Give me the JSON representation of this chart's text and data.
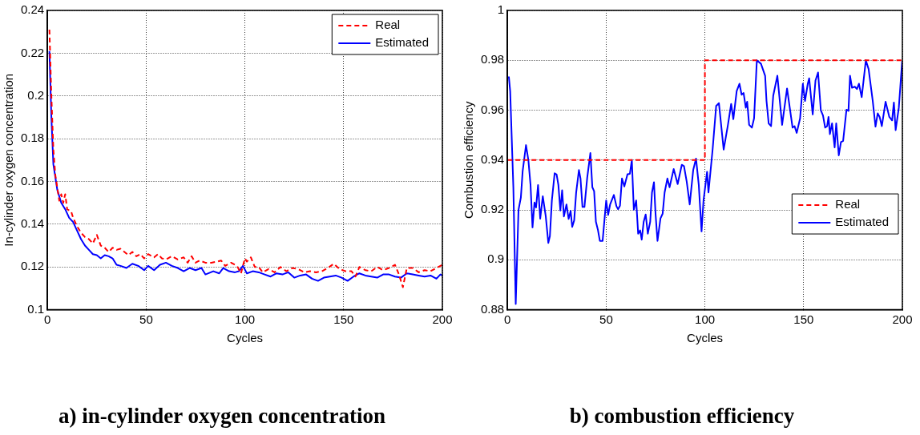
{
  "chart_data": [
    {
      "type": "line",
      "title": "a) in-cylinder oxygen concentration",
      "xlabel": "Cycles",
      "ylabel": "In-cylinder oxygen concentration",
      "xlim": [
        0,
        200
      ],
      "xticks": [
        0,
        50,
        100,
        150,
        200
      ],
      "ylim": [
        0.1,
        0.24
      ],
      "yticks": [
        {
          "value": 0.1,
          "label": "0.1"
        },
        0.12,
        0.14,
        0.16,
        0.18,
        {
          "value": 0.2,
          "label": "0.2"
        },
        0.22,
        0.24
      ],
      "grid": true,
      "legend": "top right",
      "marker": "none",
      "series": [
        {
          "name": "Real",
          "color": "#ff0000",
          "line_style": "dashed",
          "x": [
            1,
            2,
            3,
            4,
            6,
            7,
            8,
            9,
            10,
            12,
            13,
            15,
            17,
            19,
            21,
            23,
            25,
            27,
            29,
            31,
            33,
            35,
            37,
            39,
            41,
            43,
            45,
            47,
            49,
            51,
            54,
            56,
            58,
            60,
            63,
            66,
            69,
            71,
            73,
            75,
            77,
            80,
            83,
            86,
            88,
            90,
            93,
            96,
            98,
            100,
            101,
            103,
            105,
            107,
            109,
            112,
            115,
            118,
            121,
            124,
            127,
            130,
            133,
            136,
            139,
            142,
            145,
            148,
            151,
            154,
            156,
            158,
            161,
            164,
            167,
            170,
            173,
            176,
            178,
            180,
            182,
            185,
            188,
            191,
            194,
            197,
            200
          ],
          "values": [
            0.231,
            0.2,
            0.175,
            0.163,
            0.151,
            0.154,
            0.15,
            0.154,
            0.147,
            0.146,
            0.143,
            0.139,
            0.136,
            0.134,
            0.133,
            0.131,
            0.135,
            0.13,
            0.129,
            0.127,
            0.129,
            0.128,
            0.1285,
            0.127,
            0.1255,
            0.127,
            0.125,
            0.126,
            0.124,
            0.126,
            0.1245,
            0.126,
            0.124,
            0.1235,
            0.125,
            0.1235,
            0.1245,
            0.122,
            0.125,
            0.122,
            0.123,
            0.122,
            0.122,
            0.1225,
            0.123,
            0.1205,
            0.122,
            0.1205,
            0.117,
            0.124,
            0.1225,
            0.1245,
            0.12,
            0.12,
            0.1175,
            0.119,
            0.1175,
            0.12,
            0.118,
            0.1195,
            0.119,
            0.1175,
            0.118,
            0.1175,
            0.118,
            0.1195,
            0.1215,
            0.119,
            0.118,
            0.118,
            0.1155,
            0.12,
            0.1185,
            0.118,
            0.12,
            0.1185,
            0.1195,
            0.121,
            0.1165,
            0.1105,
            0.1195,
            0.1195,
            0.1175,
            0.1185,
            0.118,
            0.1195,
            0.121
          ]
        },
        {
          "name": "Estimated",
          "color": "#0000ff",
          "line_style": "solid",
          "x": [
            1,
            2,
            3,
            5,
            7,
            9,
            11,
            13,
            15,
            17,
            19,
            21,
            23,
            25,
            27,
            29,
            31,
            33,
            35,
            37,
            40,
            43,
            46,
            49,
            51,
            54,
            57,
            60,
            63,
            66,
            69,
            72,
            75,
            78,
            80,
            84,
            87,
            89,
            92,
            95,
            97,
            99,
            101,
            104,
            107,
            110,
            113,
            116,
            119,
            122,
            125,
            128,
            131,
            134,
            137,
            140,
            143,
            146,
            149,
            152,
            155,
            158,
            161,
            164,
            167,
            170,
            173,
            176,
            179,
            182,
            185,
            188,
            191,
            194,
            197,
            199,
            200
          ],
          "values": [
            0.221,
            0.19,
            0.168,
            0.156,
            0.15,
            0.147,
            0.143,
            0.141,
            0.137,
            0.133,
            0.13,
            0.128,
            0.126,
            0.1255,
            0.124,
            0.1255,
            0.125,
            0.124,
            0.121,
            0.1205,
            0.1195,
            0.1215,
            0.1205,
            0.1185,
            0.1205,
            0.1185,
            0.121,
            0.122,
            0.1205,
            0.1195,
            0.118,
            0.1195,
            0.1185,
            0.1195,
            0.1165,
            0.118,
            0.117,
            0.1195,
            0.118,
            0.1175,
            0.118,
            0.1205,
            0.117,
            0.118,
            0.1175,
            0.1165,
            0.1155,
            0.117,
            0.1165,
            0.1175,
            0.115,
            0.116,
            0.1165,
            0.1145,
            0.1135,
            0.115,
            0.1155,
            0.116,
            0.115,
            0.1135,
            0.1155,
            0.117,
            0.116,
            0.1155,
            0.115,
            0.1165,
            0.1165,
            0.1155,
            0.115,
            0.117,
            0.1165,
            0.116,
            0.1155,
            0.116,
            0.1145,
            0.1165,
            0.116
          ]
        }
      ]
    },
    {
      "type": "line",
      "title": "b) combustion efficiency",
      "xlabel": "Cycles",
      "ylabel": "Combustion efficiency",
      "xlim": [
        0,
        200
      ],
      "xticks": [
        0,
        50,
        100,
        150,
        200
      ],
      "ylim": [
        0.88,
        1
      ],
      "yticks": [
        0.88,
        {
          "value": 0.9,
          "label": "0.9"
        },
        0.92,
        0.94,
        0.96,
        0.98,
        {
          "value": 1,
          "label": "1"
        }
      ],
      "grid": true,
      "legend": "right",
      "marker": "none",
      "series": [
        {
          "name": "Real",
          "color": "#ff0000",
          "line_style": "dashed",
          "x": [
            0,
            100,
            100,
            200
          ],
          "values": [
            0.94,
            0.94,
            0.98,
            0.98
          ]
        },
        {
          "name": "Estimated",
          "color": "#0000ff",
          "line_style": "solid",
          "x": [
            0.7,
            1.4,
            3,
            4.2,
            5.6,
            6.8,
            7.7,
            9.4,
            10.6,
            11.7,
            12.7,
            13.7,
            14.5,
            15.5,
            16.6,
            17.9,
            19.4,
            20.7,
            21.5,
            22.5,
            23.9,
            24.9,
            25.8,
            26.8,
            27.7,
            28.6,
            29.9,
            31,
            32,
            32.8,
            33.8,
            34.8,
            36.2,
            37,
            38,
            39,
            40.4,
            42,
            43,
            43.9,
            44.8,
            45.8,
            46.8,
            48.2,
            50,
            51,
            52,
            53.9,
            55.2,
            56,
            57,
            58,
            59.2,
            60.8,
            62,
            63,
            64,
            65.2,
            66.2,
            67.2,
            68,
            69,
            70,
            71.1,
            72.3,
            73.2,
            74.2,
            75,
            76,
            77.5,
            78.6,
            79.6,
            81,
            82.1,
            84.2,
            86.2,
            88.3,
            89.4,
            90.8,
            92.3,
            94.1,
            95.5,
            96.9,
            98.3,
            99.3,
            101.1,
            101.8,
            103.9,
            105.7,
            107.1,
            109.5,
            111.6,
            113.3,
            114.4,
            116.1,
            117.5,
            118.6,
            119.6,
            120.7,
            121.4,
            122.4,
            123.8,
            124.9,
            126.3,
            128.4,
            130.5,
            131.2,
            132.3,
            133.5,
            134.6,
            136.7,
            139.1,
            141.6,
            144.4,
            145.4,
            146.5,
            148.2,
            149.6,
            150.7,
            152.1,
            152.8,
            154.6,
            156,
            157.3,
            158.7,
            159.8,
            160.9,
            161.9,
            162.6,
            163.3,
            164.4,
            165.7,
            166.5,
            167.8,
            168.9,
            170,
            171.7,
            172.7,
            173.5,
            174.5,
            175.9,
            177,
            178,
            179.4,
            181.5,
            182.9,
            185,
            186.4,
            187.5,
            188.5,
            189.6,
            191.5,
            193.4,
            194.8,
            195.7,
            196.6,
            198.2,
            199.9
          ],
          "values": [
            0.9735,
            0.9675,
            0.929,
            0.8823,
            0.92,
            0.925,
            0.9355,
            0.946,
            0.94,
            0.93,
            0.913,
            0.923,
            0.921,
            0.93,
            0.9165,
            0.9255,
            0.9175,
            0.9068,
            0.9095,
            0.9238,
            0.9347,
            0.9342,
            0.93,
            0.9198,
            0.9279,
            0.9174,
            0.9222,
            0.9164,
            0.9196,
            0.9132,
            0.9158,
            0.927,
            0.936,
            0.9326,
            0.9212,
            0.9212,
            0.9329,
            0.9428,
            0.9291,
            0.9275,
            0.9153,
            0.9121,
            0.9076,
            0.9076,
            0.9238,
            0.918,
            0.9222,
            0.926,
            0.9215,
            0.9203,
            0.9217,
            0.9326,
            0.9294,
            0.9343,
            0.9345,
            0.94,
            0.9201,
            0.9238,
            0.9105,
            0.9118,
            0.9081,
            0.9153,
            0.9182,
            0.9105,
            0.9153,
            0.927,
            0.9311,
            0.9185,
            0.9076,
            0.9166,
            0.9185,
            0.927,
            0.9326,
            0.9291,
            0.9364,
            0.9304,
            0.9381,
            0.9376,
            0.9313,
            0.9222,
            0.9361,
            0.9406,
            0.93,
            0.9114,
            0.9238,
            0.9353,
            0.927,
            0.9442,
            0.9617,
            0.9628,
            0.9442,
            0.9538,
            0.9625,
            0.9564,
            0.9677,
            0.9706,
            0.9662,
            0.9669,
            0.961,
            0.9634,
            0.9541,
            0.953,
            0.9567,
            0.98,
            0.9786,
            0.9738,
            0.9637,
            0.9547,
            0.9536,
            0.9658,
            0.9738,
            0.9541,
            0.9687,
            0.953,
            0.9536,
            0.9509,
            0.9567,
            0.9706,
            0.9637,
            0.9706,
            0.9728,
            0.9583,
            0.9719,
            0.9751,
            0.96,
            0.9579,
            0.953,
            0.9536,
            0.9573,
            0.9504,
            0.9547,
            0.9451,
            0.9547,
            0.9419,
            0.9472,
            0.9477,
            0.9602,
            0.9597,
            0.9738,
            0.969,
            0.9694,
            0.9685,
            0.9706,
            0.9652,
            0.98,
            0.9765,
            0.9637,
            0.9534,
            0.9587,
            0.9573,
            0.9536,
            0.9634,
            0.9573,
            0.9559,
            0.9631,
            0.952,
            0.961,
            0.9797
          ]
        }
      ]
    }
  ]
}
